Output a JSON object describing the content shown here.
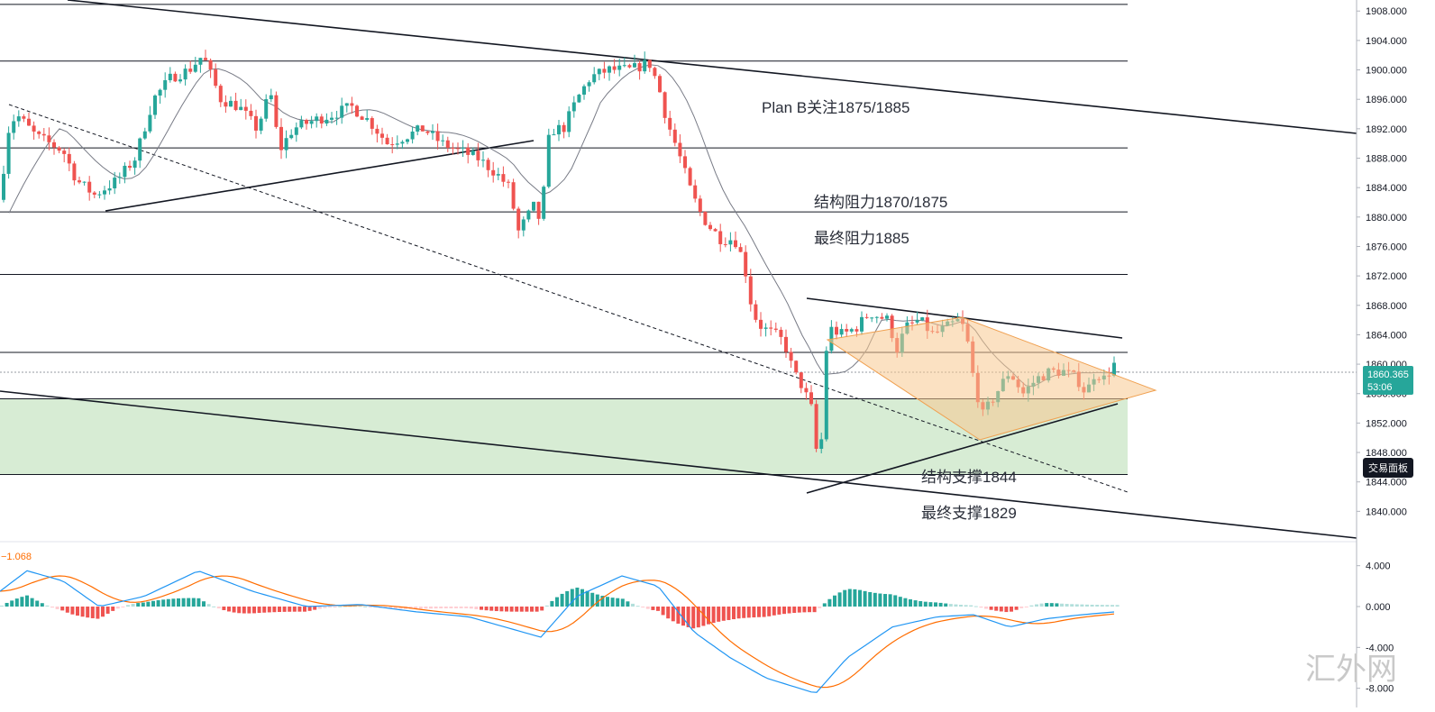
{
  "chart_data": {
    "type": "candlestick",
    "price_axis": {
      "ticks": [
        "1908.000",
        "1904.000",
        "1900.000",
        "1896.000",
        "1892.000",
        "1888.000",
        "1884.000",
        "1880.000",
        "1876.000",
        "1872.000",
        "1868.000",
        "1864.000",
        "1860.000",
        "1856.000",
        "1852.000",
        "1848.000",
        "1844.000",
        "1840.000"
      ],
      "range": [
        1836,
        1909.5
      ]
    },
    "macd_axis": {
      "ticks": [
        "4.000",
        "0.000",
        "-4.000",
        "-8.000"
      ],
      "range": [
        -9,
        6
      ]
    },
    "last_price": "1860.365",
    "countdown": "53:06",
    "trading_panel_label": "交易面板",
    "macd_value_label": "−1.068",
    "horizontal_levels": [
      1908.9,
      1901.2,
      1889.4,
      1880.7,
      1872.2,
      1861.6,
      1855.3,
      1845.0
    ],
    "support_zone": [
      1845.0,
      1855.3
    ],
    "annotations": [
      {
        "text": "Plan B关注1875/1885",
        "price": 1896.2
      },
      {
        "text": "结构阻力1870/1875",
        "price": 1882.0
      },
      {
        "text": "最终阻力1885",
        "price": 1877.6
      },
      {
        "text": "结构支撑1844",
        "price": 1846.2
      },
      {
        "text": "最终支撑1829",
        "price": 1841.8
      }
    ],
    "watermark": "汇外网",
    "colors": {
      "up": "#26a69a",
      "down": "#ef5350",
      "zone": "#d7ecd4",
      "triangle": "#f8c890",
      "ma": "#787b86",
      "macd_line": "#2196f3",
      "signal_line": "#ff6d00"
    }
  }
}
